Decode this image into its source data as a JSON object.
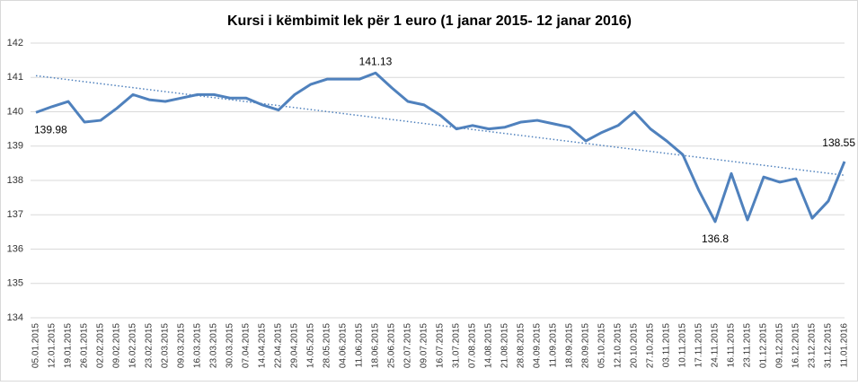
{
  "chart_data": {
    "type": "line",
    "title": "Kursi i këmbimit lek për 1 euro (1 janar 2015- 12 janar 2016)",
    "categories": [
      "05.01.2015",
      "12.01.2015",
      "19.01.2015",
      "26.01.2015",
      "02.02.2015",
      "09.02.2015",
      "16.02.2015",
      "23.02.2015",
      "02.03.2015",
      "09.03.2015",
      "16.03.2015",
      "23.03.2015",
      "30.03.2015",
      "07.04.2015",
      "14.04.2015",
      "22.04.2015",
      "29.04.2015",
      "14.05.2015",
      "28.05.2015",
      "04.06.2015",
      "11.06.2015",
      "18.06.2015",
      "25.06.2015",
      "02.07.2015",
      "09.07.2015",
      "16.07.2015",
      "31.07.2015",
      "07.08.2015",
      "14.08.2015",
      "21.08.2015",
      "28.08.2015",
      "04.09.2015",
      "11.09.2015",
      "18.09.2015",
      "28.09.2015",
      "05.10.2015",
      "12.10.2015",
      "20.10.2015",
      "27.10.2015",
      "03.11.2015",
      "10.11.2015",
      "17.11.2015",
      "24.11.2015",
      "16.11.2015",
      "23.11.2015",
      "01.12.2015",
      "09.12.2015",
      "16.12.2015",
      "23.12.2015",
      "31.12.2015",
      "11.01.2016"
    ],
    "values": [
      139.98,
      140.15,
      140.3,
      139.7,
      139.75,
      140.1,
      140.5,
      140.35,
      140.3,
      140.4,
      140.5,
      140.5,
      140.4,
      140.4,
      140.2,
      140.05,
      140.5,
      140.8,
      140.95,
      140.95,
      140.95,
      141.13,
      140.7,
      140.3,
      140.2,
      139.9,
      139.5,
      139.6,
      139.5,
      139.55,
      139.7,
      139.75,
      139.65,
      139.55,
      139.15,
      139.4,
      139.6,
      140.0,
      139.5,
      139.15,
      138.75,
      137.7,
      136.8,
      138.2,
      136.85,
      138.1,
      137.95,
      138.05,
      136.9,
      137.4,
      138.55
    ],
    "labeled_points": [
      0,
      21,
      42,
      50
    ],
    "trendline": [
      141.05,
      138.15
    ],
    "color": "#4f81bd",
    "ylim": [
      134,
      142
    ],
    "yticks": [
      134,
      135,
      136,
      137,
      138,
      139,
      140,
      141,
      142
    ],
    "grid": true
  }
}
